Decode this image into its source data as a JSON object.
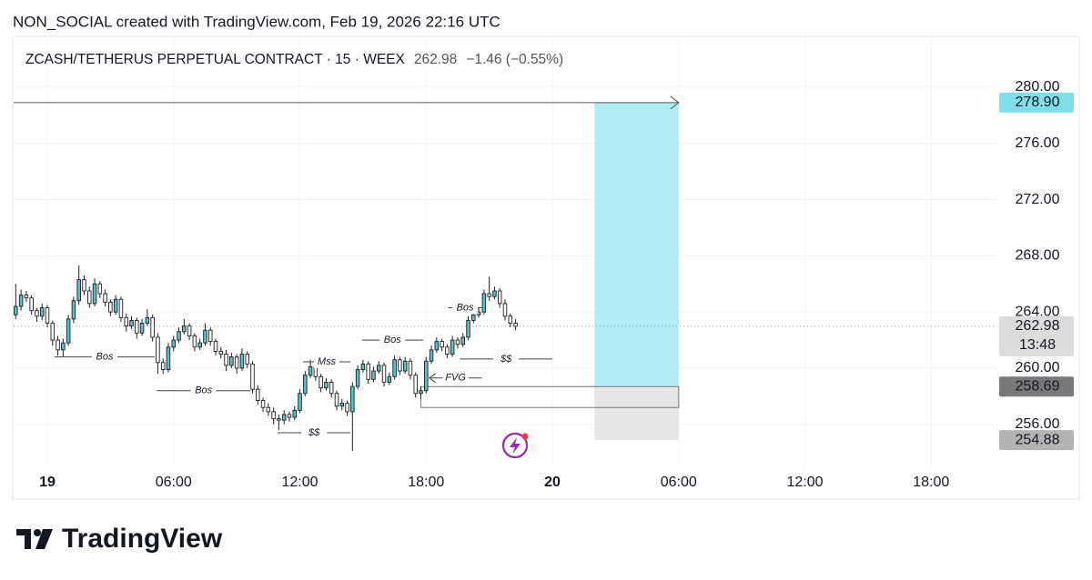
{
  "header": {
    "attribution": "NON_SOCIAL created with TradingView.com, Feb 19, 2026 22:16 UTC"
  },
  "footer": {
    "brand": "TradingView"
  },
  "chart_data": {
    "type": "candlestick",
    "title": "ZCASH/TETHERUS PERPETUAL CONTRACT · 15 · WEEX",
    "last": 262.98,
    "change": "−1.46 (−0.55%)",
    "countdown": "13:48",
    "up_color": "#5cbfcc",
    "down_color": "#ffffff",
    "wick_color": "#1e1e1e",
    "grid": true,
    "xlim": [
      -1.6,
      45.1
    ],
    "ylim": [
      252.88,
      283.62
    ],
    "xticks": [
      {
        "value": 0,
        "label": "19"
      },
      {
        "value": 6,
        "label": "06:00"
      },
      {
        "value": 12,
        "label": "12:00"
      },
      {
        "value": 18,
        "label": "18:00"
      },
      {
        "value": 24,
        "label": "20"
      },
      {
        "value": 30,
        "label": "06:00"
      },
      {
        "value": 36,
        "label": "12:00"
      },
      {
        "value": 42,
        "label": "18:00"
      }
    ],
    "yticks": [
      {
        "value": 256,
        "label": "256.00"
      },
      {
        "value": 260,
        "label": "260.00"
      },
      {
        "value": 264,
        "label": "264.00"
      },
      {
        "value": 268,
        "label": "268.00"
      },
      {
        "value": 272,
        "label": "272.00"
      },
      {
        "value": 276,
        "label": "276.00"
      },
      {
        "value": 280,
        "label": "280.00"
      }
    ],
    "x": [
      -1.5,
      -1.25,
      -1,
      -0.75,
      -0.5,
      -0.25,
      0,
      0.25,
      0.5,
      0.75,
      1,
      1.25,
      1.5,
      1.75,
      2,
      2.25,
      2.5,
      2.75,
      3,
      3.25,
      3.5,
      3.75,
      4,
      4.25,
      4.5,
      4.75,
      5,
      5.25,
      5.5,
      5.75,
      6,
      6.25,
      6.5,
      6.75,
      7,
      7.25,
      7.5,
      7.75,
      8,
      8.25,
      8.5,
      8.75,
      9,
      9.25,
      9.5,
      9.75,
      10,
      10.25,
      10.5,
      10.75,
      11,
      11.25,
      11.5,
      11.75,
      12,
      12.25,
      12.5,
      12.75,
      13,
      13.25,
      13.5,
      13.75,
      14,
      14.25,
      14.5,
      14.75,
      15,
      15.25,
      15.5,
      15.75,
      16,
      16.25,
      16.5,
      16.75,
      17,
      17.25,
      17.5,
      17.75,
      18,
      18.25,
      18.5,
      18.75,
      19,
      19.25,
      19.5,
      19.75,
      20,
      20.25,
      20.5,
      20.75,
      21,
      21.25,
      21.5,
      21.75,
      22,
      22.25
    ],
    "open": [
      263.8,
      264.4,
      265.2,
      265.0,
      264.1,
      263.7,
      264.3,
      263.2,
      262.0,
      261.3,
      261.8,
      263.5,
      264.8,
      266.3,
      265.5,
      264.6,
      266.0,
      265.3,
      264.7,
      264.0,
      264.9,
      263.6,
      263.0,
      263.4,
      262.5,
      263.2,
      263.6,
      262.2,
      260.4,
      259.9,
      261.5,
      262.0,
      262.6,
      263.0,
      262.3,
      261.5,
      261.8,
      262.7,
      261.9,
      261.2,
      261.0,
      260.2,
      260.8,
      260.0,
      261.0,
      260.3,
      258.5,
      257.7,
      257.2,
      256.9,
      256.4,
      256.3,
      256.7,
      256.5,
      257.0,
      258.2,
      259.5,
      260.1,
      259.4,
      258.6,
      259.0,
      258.2,
      257.3,
      257.5,
      256.9,
      258.7,
      259.9,
      260.3,
      259.2,
      259.8,
      260.2,
      259.0,
      259.4,
      260.6,
      259.8,
      260.5,
      259.5,
      258.2,
      258.4,
      260.5,
      261.3,
      261.9,
      261.5,
      261.0,
      262.0,
      261.7,
      262.2,
      263.4,
      263.8,
      264.0,
      265.3,
      265.1,
      265.5,
      264.6,
      263.7,
      263.2
    ],
    "high": [
      266.0,
      265.6,
      265.5,
      265.2,
      264.3,
      264.6,
      264.5,
      263.4,
      262.3,
      262.1,
      263.8,
      265.1,
      267.3,
      266.6,
      265.8,
      266.4,
      266.2,
      265.6,
      264.9,
      265.2,
      265.1,
      263.9,
      263.7,
      263.6,
      263.5,
      264.2,
      263.8,
      262.5,
      260.7,
      261.8,
      262.3,
      262.9,
      263.5,
      263.2,
      262.5,
      262.1,
      263.2,
      262.9,
      262.1,
      261.5,
      261.3,
      261.1,
      261.0,
      261.4,
      261.2,
      260.5,
      258.8,
      257.9,
      257.5,
      257.2,
      256.7,
      257.0,
      256.9,
      257.3,
      258.5,
      259.8,
      260.6,
      260.3,
      259.6,
      259.3,
      259.2,
      258.4,
      257.8,
      257.7,
      259.0,
      260.2,
      260.6,
      260.5,
      260.1,
      260.5,
      260.4,
      259.7,
      260.9,
      260.8,
      260.8,
      260.7,
      259.7,
      258.7,
      260.8,
      261.6,
      262.2,
      262.1,
      261.7,
      262.3,
      262.2,
      262.5,
      263.7,
      264.1,
      264.3,
      265.6,
      266.5,
      265.8,
      265.7,
      264.9,
      263.9,
      263.5
    ],
    "low": [
      263.5,
      264.1,
      264.7,
      263.8,
      263.3,
      263.4,
      262.9,
      261.6,
      260.9,
      260.8,
      261.6,
      263.2,
      264.5,
      265.2,
      264.3,
      264.4,
      265.0,
      264.4,
      263.7,
      263.8,
      263.3,
      262.6,
      262.8,
      262.1,
      262.3,
      263.0,
      261.9,
      259.6,
      259.6,
      259.7,
      261.2,
      261.8,
      262.4,
      262.0,
      261.2,
      261.3,
      261.6,
      261.6,
      260.9,
      260.7,
      259.8,
      260.0,
      259.6,
      259.8,
      260.0,
      258.2,
      257.4,
      256.9,
      256.6,
      256.0,
      255.6,
      256.0,
      256.2,
      256.3,
      256.8,
      258.0,
      259.3,
      259.1,
      258.3,
      258.4,
      257.9,
      257.0,
      257.0,
      256.6,
      254.1,
      258.5,
      259.7,
      258.9,
      259.0,
      259.6,
      258.7,
      258.8,
      259.2,
      259.5,
      259.6,
      259.2,
      257.9,
      257.8,
      258.2,
      260.3,
      261.1,
      261.2,
      260.7,
      260.8,
      261.4,
      261.5,
      262.0,
      263.2,
      263.6,
      263.8,
      264.8,
      264.9,
      264.3,
      263.4,
      262.9,
      262.7
    ],
    "close": [
      264.4,
      265.2,
      265.0,
      264.1,
      263.7,
      264.3,
      263.2,
      262.0,
      261.3,
      261.8,
      263.5,
      264.8,
      266.3,
      265.5,
      264.6,
      266.0,
      265.3,
      264.7,
      264.0,
      264.9,
      263.6,
      263.0,
      263.4,
      262.5,
      263.2,
      263.6,
      262.2,
      260.4,
      259.9,
      261.5,
      262.0,
      262.6,
      263.0,
      262.3,
      261.5,
      261.8,
      262.7,
      261.9,
      261.2,
      261.0,
      260.2,
      260.8,
      260.0,
      261.0,
      260.3,
      258.5,
      257.7,
      257.2,
      256.9,
      256.4,
      256.3,
      256.7,
      256.5,
      257.0,
      258.2,
      259.5,
      260.1,
      259.4,
      258.6,
      259.0,
      258.2,
      257.3,
      257.5,
      256.9,
      258.7,
      259.9,
      260.3,
      259.2,
      259.8,
      260.2,
      259.0,
      259.4,
      260.6,
      259.8,
      260.5,
      259.5,
      258.2,
      258.4,
      260.5,
      261.3,
      261.9,
      261.5,
      261.0,
      262.0,
      261.7,
      262.2,
      263.4,
      263.8,
      264.0,
      265.3,
      265.1,
      265.5,
      264.6,
      263.7,
      263.2,
      262.98
    ],
    "position": {
      "x": [
        26,
        30
      ],
      "target": {
        "value": 278.9,
        "label": "278.90"
      },
      "entry": 258.69,
      "stop": 254.88,
      "target_color": "#b2ebf2",
      "label_color": "#80deea",
      "stop_color": "#e6e6e6"
    },
    "fvg_zone": {
      "x": [
        17.75,
        30
      ],
      "top": 258.69,
      "bottom": 257.2
    },
    "annotations": [
      {
        "text": "Bos",
        "price": 260.8,
        "x": [
          0.35,
          5.1
        ]
      },
      {
        "text": "Bos",
        "price": 258.4,
        "x": [
          5.2,
          9.65
        ]
      },
      {
        "text": "$$",
        "price": 255.4,
        "x": [
          10.95,
          14.4
        ]
      },
      {
        "text": "Mss",
        "price": 260.45,
        "x": [
          12.15,
          14.4
        ]
      },
      {
        "text": "Bos",
        "price": 262.0,
        "x": [
          14.95,
          17.85
        ]
      },
      {
        "text": "Bos",
        "price": 264.3,
        "x": [
          19.05,
          20.65
        ]
      },
      {
        "text": "$$",
        "price": 260.65,
        "x": [
          19.6,
          24.0
        ]
      },
      {
        "text": "FVG",
        "price": 259.3,
        "x": [
          18.15,
          20.65
        ],
        "arrow": true
      }
    ]
  }
}
